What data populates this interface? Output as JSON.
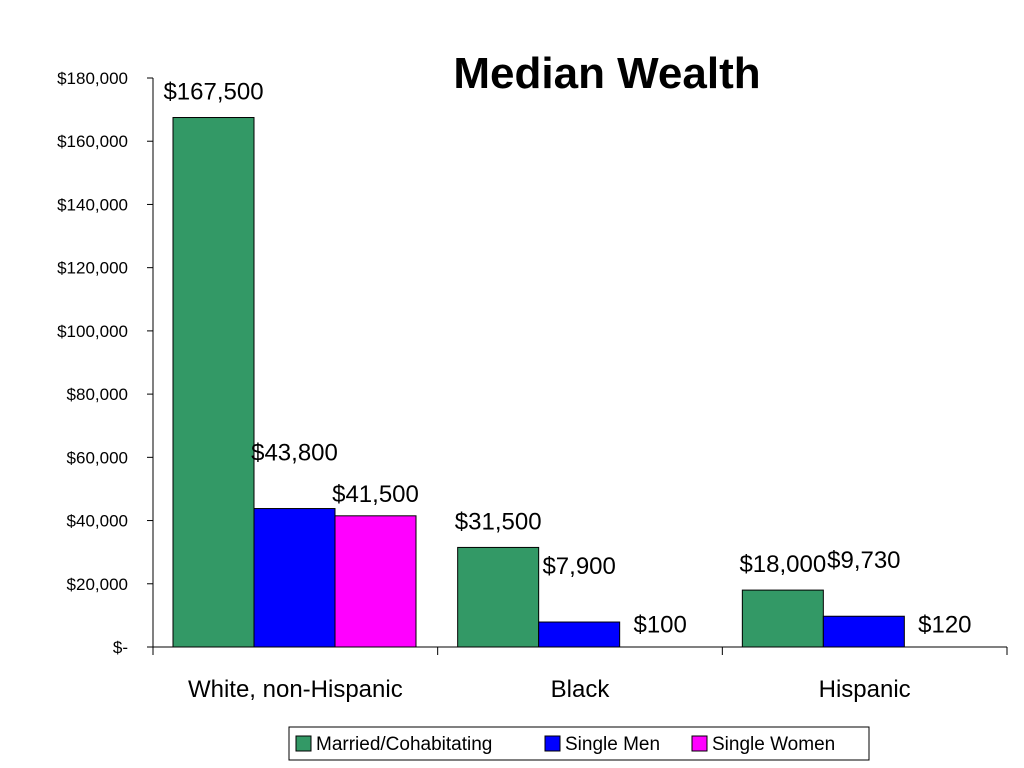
{
  "chart_data": {
    "type": "bar",
    "title": "Median Wealth",
    "categories": [
      "White, non-Hispanic",
      "Black",
      "Hispanic"
    ],
    "series": [
      {
        "name": "Married/Cohabitating",
        "color": "#339966",
        "values": [
          167500,
          31500,
          18000
        ],
        "labels": [
          "$167,500",
          "$31,500",
          "$18,000"
        ]
      },
      {
        "name": "Single Men",
        "color": "#0000ff",
        "values": [
          43800,
          7900,
          9730
        ],
        "labels": [
          "$43,800",
          "$7,900",
          "$9,730"
        ]
      },
      {
        "name": "Single Women",
        "color": "#ff00ff",
        "values": [
          41500,
          100,
          120
        ],
        "labels": [
          "$41,500",
          "$100",
          "$120"
        ]
      }
    ],
    "ylim": [
      0,
      180000
    ],
    "yticks": [
      {
        "value": 0,
        "label": "$-"
      },
      {
        "value": 20000,
        "label": "$20,000"
      },
      {
        "value": 40000,
        "label": "$40,000"
      },
      {
        "value": 60000,
        "label": "$60,000"
      },
      {
        "value": 80000,
        "label": "$80,000"
      },
      {
        "value": 100000,
        "label": "$100,000"
      },
      {
        "value": 120000,
        "label": "$120,000"
      },
      {
        "value": 140000,
        "label": "$140,000"
      },
      {
        "value": 160000,
        "label": "$160,000"
      },
      {
        "value": 180000,
        "label": "$180,000"
      }
    ],
    "grid": false,
    "legend_position": "bottom"
  }
}
